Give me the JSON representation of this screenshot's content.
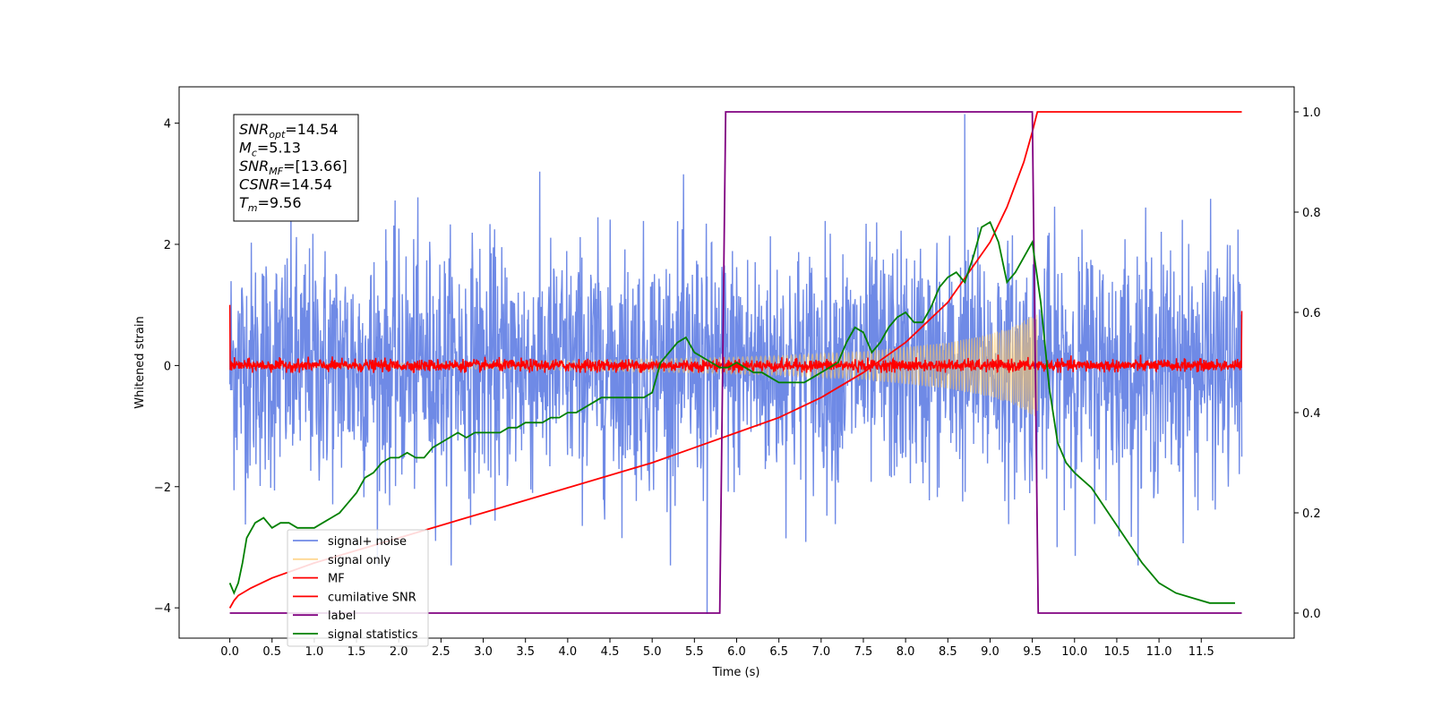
{
  "chart_data": {
    "type": "line",
    "title": "",
    "xlabel": "Time (s)",
    "ylabel": "Whitened strain",
    "y2label": "",
    "xlim": [
      -0.6,
      12.6
    ],
    "ylim": [
      -4.5,
      4.6
    ],
    "y2lim": [
      -0.05,
      1.05
    ],
    "x_ticks": [
      0.0,
      0.5,
      1.0,
      1.5,
      2.0,
      2.5,
      3.0,
      3.5,
      4.0,
      4.5,
      5.0,
      5.5,
      6.0,
      6.5,
      7.0,
      7.5,
      8.0,
      8.5,
      9.0,
      9.5,
      10.0,
      10.5,
      11.0,
      11.5
    ],
    "x_tick_labels": [
      "0.0",
      "0.5",
      "1.0",
      "1.5",
      "2.0",
      "2.5",
      "3.0",
      "3.5",
      "4.0",
      "4.5",
      "5.0",
      "5.5",
      "6.0",
      "6.5",
      "7.0",
      "7.5",
      "8.0",
      "8.5",
      "9.0",
      "9.5",
      "10.0",
      "10.5",
      "11.0",
      "11.5"
    ],
    "y_ticks": [
      -4,
      -2,
      0,
      2,
      4
    ],
    "y_tick_labels": [
      "−4",
      "−2",
      "0",
      "2",
      "4"
    ],
    "y2_ticks": [
      0.0,
      0.2,
      0.4,
      0.6,
      0.8,
      1.0
    ],
    "y2_tick_labels": [
      "0.0",
      "0.2",
      "0.4",
      "0.6",
      "0.8",
      "1.0"
    ],
    "grid": false,
    "legend_position": "lower-left",
    "series": [
      {
        "name": "signal+ noise",
        "axis": "left",
        "color": "#6f8ae6",
        "style": "noise",
        "x_range": [
          0.0,
          11.98
        ],
        "amplitude": 1.0,
        "peak_extent": [
          -3.3,
          3.2
        ],
        "spikes": [
          {
            "x": 5.65,
            "y": -4.1
          },
          {
            "x": 8.7,
            "y": 4.15
          }
        ]
      },
      {
        "name": "signal only",
        "axis": "left",
        "color": "#ffc864",
        "style": "chirp",
        "x_range": [
          0.0,
          9.56
        ],
        "envelope": [
          [
            0.0,
            0.02
          ],
          [
            2.0,
            0.04
          ],
          [
            4.0,
            0.08
          ],
          [
            5.5,
            0.12
          ],
          [
            6.5,
            0.16
          ],
          [
            7.5,
            0.23
          ],
          [
            8.5,
            0.38
          ],
          [
            9.0,
            0.52
          ],
          [
            9.3,
            0.66
          ],
          [
            9.5,
            0.82
          ],
          [
            9.56,
            0.85
          ]
        ]
      },
      {
        "name": "MF",
        "axis": "left",
        "color": "#ff0000",
        "style": "noise",
        "x_range": [
          0.0,
          11.98
        ],
        "amplitude": 0.05,
        "peak_extent": [
          -0.12,
          0.2
        ],
        "endpoints": [
          {
            "x": 0.0,
            "y": 1.0
          },
          {
            "x": 11.98,
            "y": 0.9
          }
        ]
      },
      {
        "name": "cumilative SNR",
        "axis": "right",
        "color": "#ff0000",
        "style": "line",
        "x": [
          0.0,
          0.05,
          0.1,
          0.25,
          0.5,
          1.0,
          1.5,
          2.0,
          3.0,
          4.0,
          5.0,
          5.5,
          6.0,
          6.5,
          7.0,
          7.5,
          8.0,
          8.5,
          9.0,
          9.2,
          9.4,
          9.5,
          9.56,
          9.6,
          10.0,
          11.0,
          11.98
        ],
        "values": [
          0.01,
          0.025,
          0.035,
          0.05,
          0.07,
          0.1,
          0.125,
          0.15,
          0.2,
          0.25,
          0.3,
          0.33,
          0.36,
          0.39,
          0.43,
          0.48,
          0.54,
          0.62,
          0.74,
          0.81,
          0.9,
          0.96,
          1.0,
          1.0,
          1.0,
          1.0,
          1.0
        ]
      },
      {
        "name": "label",
        "axis": "right",
        "color": "#800080",
        "style": "line",
        "x": [
          0.0,
          5.8,
          5.87,
          9.5,
          9.57,
          11.98
        ],
        "values": [
          0.0,
          0.0,
          1.0,
          1.0,
          0.0,
          0.0
        ]
      },
      {
        "name": "signal statistics",
        "axis": "right",
        "color": "#008000",
        "style": "line",
        "x": [
          0.0,
          0.05,
          0.1,
          0.15,
          0.2,
          0.3,
          0.4,
          0.5,
          0.6,
          0.7,
          0.8,
          0.9,
          1.0,
          1.1,
          1.2,
          1.3,
          1.4,
          1.5,
          1.6,
          1.7,
          1.8,
          1.9,
          2.0,
          2.1,
          2.2,
          2.3,
          2.4,
          2.5,
          2.6,
          2.7,
          2.8,
          2.9,
          3.0,
          3.1,
          3.2,
          3.3,
          3.4,
          3.5,
          3.6,
          3.7,
          3.8,
          3.9,
          4.0,
          4.1,
          4.2,
          4.3,
          4.4,
          4.5,
          4.6,
          4.7,
          4.8,
          4.9,
          5.0,
          5.1,
          5.2,
          5.3,
          5.4,
          5.5,
          5.6,
          5.7,
          5.8,
          5.9,
          6.0,
          6.1,
          6.2,
          6.3,
          6.4,
          6.5,
          6.6,
          6.7,
          6.8,
          6.9,
          7.0,
          7.1,
          7.2,
          7.3,
          7.4,
          7.5,
          7.6,
          7.7,
          7.8,
          7.9,
          8.0,
          8.1,
          8.2,
          8.3,
          8.4,
          8.5,
          8.6,
          8.7,
          8.8,
          8.9,
          9.0,
          9.1,
          9.2,
          9.3,
          9.4,
          9.5,
          9.6,
          9.7,
          9.8,
          9.9,
          10.0,
          10.2,
          10.4,
          10.6,
          10.8,
          11.0,
          11.2,
          11.4,
          11.6,
          11.8,
          11.9
        ],
        "values": [
          0.06,
          0.04,
          0.06,
          0.1,
          0.15,
          0.18,
          0.19,
          0.17,
          0.18,
          0.18,
          0.17,
          0.17,
          0.17,
          0.18,
          0.19,
          0.2,
          0.22,
          0.24,
          0.27,
          0.28,
          0.3,
          0.31,
          0.31,
          0.32,
          0.31,
          0.31,
          0.33,
          0.34,
          0.35,
          0.36,
          0.35,
          0.36,
          0.36,
          0.36,
          0.36,
          0.37,
          0.37,
          0.38,
          0.38,
          0.38,
          0.39,
          0.39,
          0.4,
          0.4,
          0.41,
          0.42,
          0.43,
          0.43,
          0.43,
          0.43,
          0.43,
          0.43,
          0.44,
          0.5,
          0.52,
          0.54,
          0.55,
          0.52,
          0.51,
          0.5,
          0.49,
          0.49,
          0.5,
          0.49,
          0.48,
          0.48,
          0.47,
          0.46,
          0.46,
          0.46,
          0.46,
          0.47,
          0.48,
          0.49,
          0.5,
          0.54,
          0.57,
          0.56,
          0.52,
          0.54,
          0.57,
          0.59,
          0.6,
          0.58,
          0.58,
          0.61,
          0.65,
          0.67,
          0.68,
          0.66,
          0.71,
          0.77,
          0.78,
          0.74,
          0.66,
          0.68,
          0.71,
          0.74,
          0.62,
          0.45,
          0.34,
          0.3,
          0.28,
          0.25,
          0.2,
          0.15,
          0.1,
          0.06,
          0.04,
          0.03,
          0.02,
          0.02,
          0.02
        ]
      }
    ],
    "annotation_box": {
      "position": "top-left",
      "lines": [
        {
          "sym": "SNR",
          "sub": "opt",
          "val": "=14.54"
        },
        {
          "sym": "M",
          "sub": "c",
          "val": "=5.13"
        },
        {
          "sym": "SNR",
          "sub": "MF",
          "val": "=[13.66]"
        },
        {
          "sym": "CSNR",
          "sub": "",
          "val": "=14.54"
        },
        {
          "sym": "T",
          "sub": "m",
          "val": "=9.56"
        }
      ]
    }
  }
}
